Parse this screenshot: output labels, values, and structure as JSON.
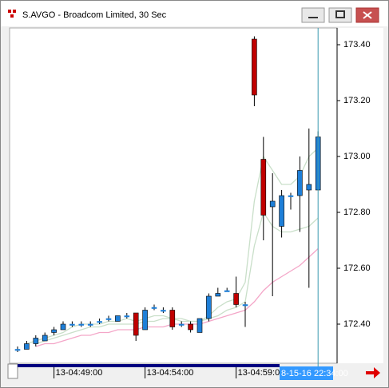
{
  "window_title": "S.AVGO - Broadcom Limited, 30 Sec",
  "chart_data": {
    "type": "candlestick",
    "categories": [
      null,
      null,
      null,
      null,
      "13-04:49:00",
      null,
      null,
      null,
      null,
      null,
      null,
      null,
      null,
      null,
      "13-04:54:00",
      null,
      null,
      null,
      null,
      null,
      null,
      null,
      null,
      null,
      "13-04:59:00",
      null,
      null,
      null,
      null,
      null,
      null,
      null,
      null,
      null
    ],
    "open": [
      172.31,
      172.31,
      172.33,
      172.34,
      172.37,
      172.38,
      172.4,
      172.4,
      172.4,
      172.41,
      172.42,
      172.41,
      172.43,
      172.44,
      172.38,
      172.46,
      172.45,
      172.45,
      172.4,
      172.4,
      172.37,
      172.42,
      172.5,
      172.52,
      172.51,
      172.47,
      173.42,
      172.99,
      172.82,
      172.75,
      172.86,
      172.86,
      172.88,
      172.88
    ],
    "high": [
      172.32,
      172.34,
      172.36,
      172.37,
      172.39,
      172.41,
      172.41,
      172.41,
      172.41,
      172.42,
      172.43,
      172.43,
      172.44,
      172.44,
      172.46,
      172.47,
      172.46,
      172.46,
      172.41,
      172.41,
      172.42,
      172.51,
      172.53,
      172.53,
      172.57,
      172.48,
      173.43,
      173.07,
      172.94,
      172.88,
      172.87,
      173.0,
      173.1,
      173.09
    ],
    "low": [
      172.3,
      172.31,
      172.32,
      172.34,
      172.36,
      172.38,
      172.39,
      172.39,
      172.39,
      172.4,
      172.41,
      172.41,
      172.42,
      172.34,
      172.38,
      172.45,
      172.44,
      172.38,
      172.39,
      172.37,
      172.37,
      172.41,
      172.5,
      172.52,
      172.46,
      172.39,
      173.18,
      172.7,
      172.5,
      172.71,
      172.81,
      172.73,
      172.53,
      172.88
    ],
    "close": [
      172.31,
      172.33,
      172.35,
      172.36,
      172.38,
      172.4,
      172.4,
      172.4,
      172.4,
      172.41,
      172.42,
      172.43,
      172.43,
      172.36,
      172.45,
      172.46,
      172.45,
      172.39,
      172.4,
      172.38,
      172.42,
      172.5,
      172.51,
      172.52,
      172.47,
      172.47,
      173.22,
      172.79,
      172.84,
      172.86,
      172.86,
      172.95,
      172.9,
      173.07
    ],
    "up_color": "#1e7fd8",
    "down_color": "#c00000",
    "overlays": [
      {
        "color": "#c9dfc9",
        "values": [
          null,
          172.33,
          172.34,
          172.35,
          172.36,
          172.37,
          172.39,
          172.4,
          172.4,
          172.4,
          172.41,
          172.41,
          172.42,
          172.41,
          172.42,
          172.43,
          172.43,
          172.42,
          172.42,
          172.41,
          172.41,
          172.43,
          172.46,
          172.48,
          172.49,
          172.55,
          172.84,
          173.0,
          172.95,
          172.9,
          172.9,
          172.93,
          173.0,
          173.03
        ]
      },
      {
        "color": "#c9dfc9",
        "values": [
          null,
          null,
          172.33,
          172.34,
          172.35,
          172.36,
          172.37,
          172.38,
          172.39,
          172.39,
          172.4,
          172.4,
          172.4,
          172.4,
          172.41,
          172.41,
          172.42,
          172.42,
          172.41,
          172.41,
          172.41,
          172.42,
          172.43,
          172.45,
          172.46,
          172.48,
          172.68,
          172.8,
          172.75,
          172.73,
          172.73,
          172.74,
          172.75,
          172.78
        ]
      },
      {
        "color": "#f4a6c8",
        "values": [
          null,
          null,
          172.32,
          172.33,
          172.33,
          172.34,
          172.35,
          172.36,
          172.36,
          172.37,
          172.37,
          172.38,
          172.38,
          172.38,
          172.39,
          172.39,
          172.39,
          172.4,
          172.4,
          172.4,
          172.4,
          172.41,
          172.42,
          172.43,
          172.44,
          172.45,
          172.48,
          172.52,
          172.55,
          172.57,
          172.59,
          172.61,
          172.64,
          172.67
        ]
      }
    ],
    "ylim": [
      172.26,
      173.46
    ],
    "yticks": [
      {
        "value": 172.4,
        "label": "172.40"
      },
      {
        "value": 172.6,
        "label": "172.60"
      },
      {
        "value": 172.8,
        "label": "172.80"
      },
      {
        "value": 173.0,
        "label": "173.00"
      },
      {
        "value": 173.2,
        "label": "173.20"
      },
      {
        "value": 173.4,
        "label": "173.40"
      }
    ],
    "cursor_label": "8-15-16 22:34:00"
  }
}
